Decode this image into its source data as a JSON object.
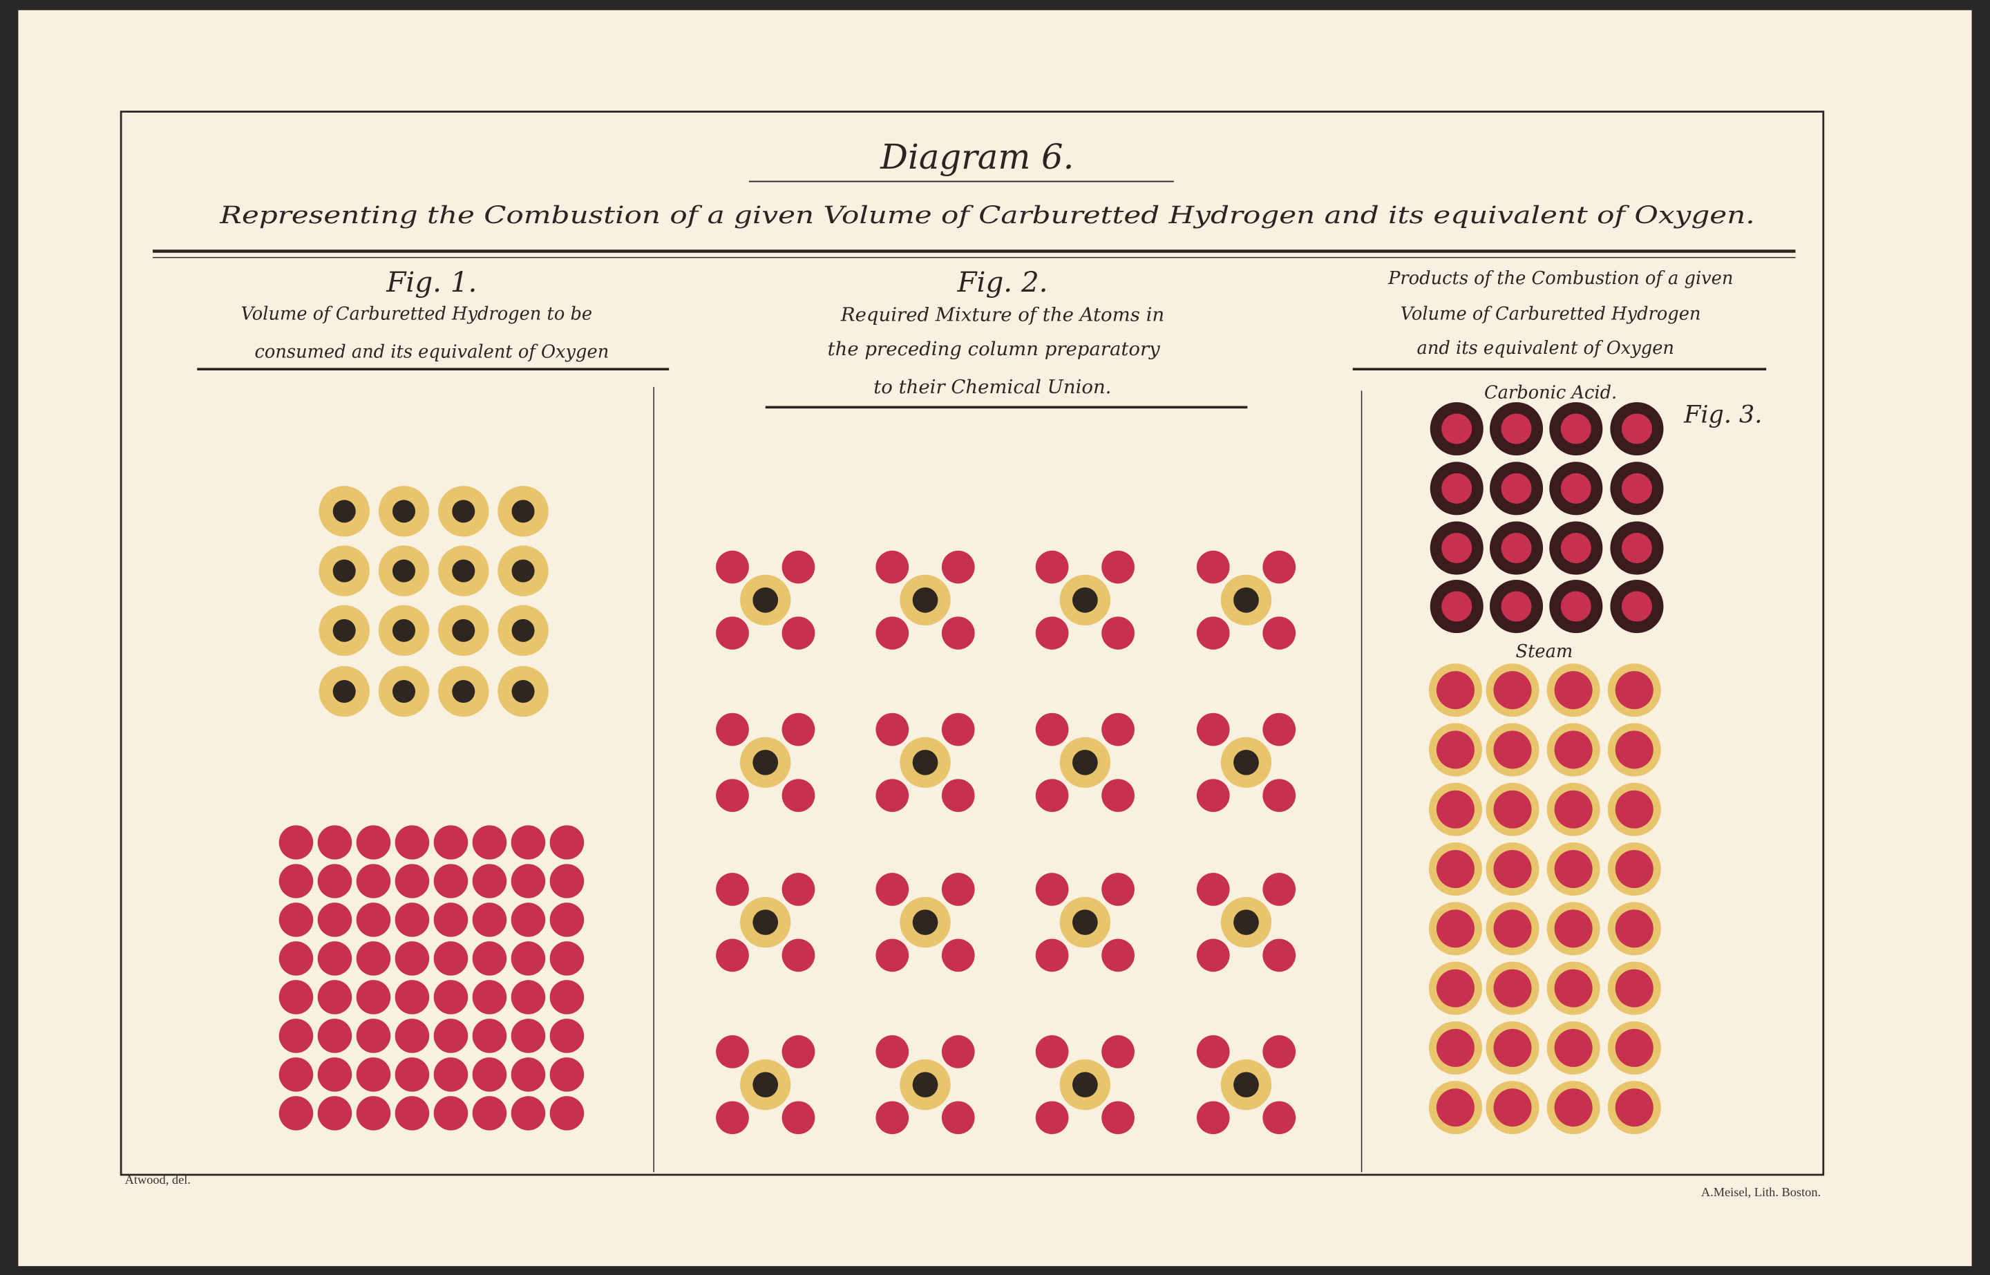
{
  "title": "Diagram 6.",
  "subtitle": "Representing the Combustion of a given Volume of Carburetted Hydrogen and its equivalent of Oxygen.",
  "fig1": {
    "label": "Fig. 1.",
    "caption": [
      "Volume of Carburetted Hydrogen to be",
      "consumed and its equivalent of Oxygen"
    ]
  },
  "fig2": {
    "label": "Fig. 2.",
    "caption": [
      "Required Mixture of the Atoms in",
      "the preceding column preparatory",
      "to their Chemical Union."
    ]
  },
  "fig3": {
    "label": "Fig. 3.",
    "caption": [
      "Products of the Combustion of a given",
      "Volume of Carburetted Hydrogen",
      "and its equivalent of Oxygen"
    ],
    "carbonic_label": "Carbonic Acid.",
    "steam_label": "Steam"
  },
  "credits": {
    "left": "Atwood, del.",
    "right": "A.Meisel, Lith. Boston."
  },
  "colors": {
    "paper": "#fbf6ea",
    "red": "#c8304f",
    "yellow": "#e8c56c",
    "dark": "#2e2620",
    "maroon": "#3a1c1e"
  }
}
